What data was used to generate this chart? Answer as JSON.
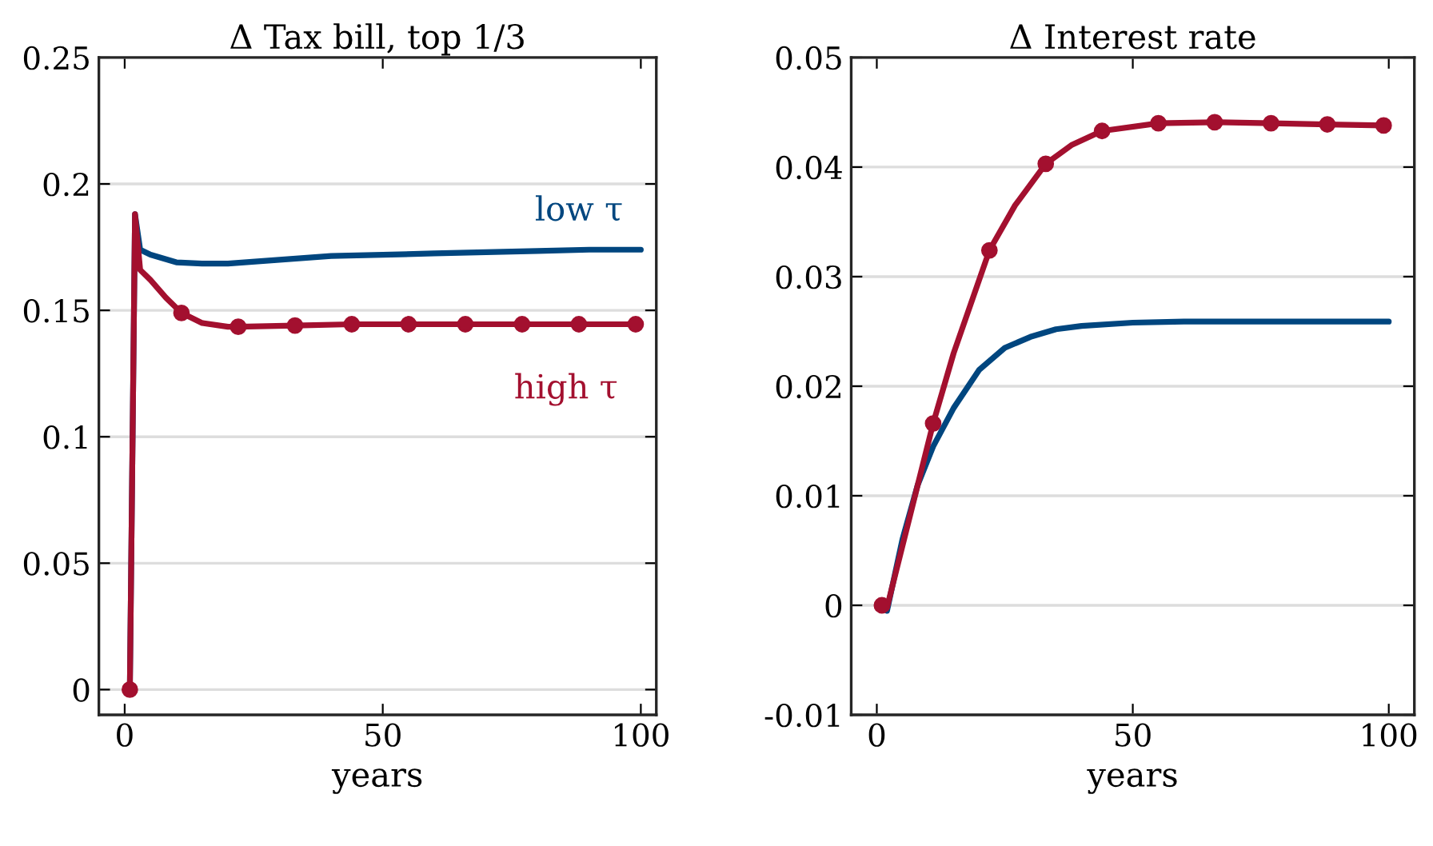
{
  "chart_data": [
    {
      "type": "line",
      "title": "Δ Tax bill, top 1/3",
      "xlabel": "years",
      "xlim": [
        -5,
        103
      ],
      "xticks": [
        0,
        50,
        100
      ],
      "ylim": [
        -0.01,
        0.25
      ],
      "yticks": [
        0,
        0.05,
        0.1,
        0.15,
        0.2,
        0.25
      ],
      "grid": "y",
      "line_style": "solid",
      "series": [
        {
          "name": "low τ",
          "color": "#00467f",
          "x": [
            1,
            2,
            3,
            5,
            10,
            15,
            20,
            30,
            40,
            50,
            60,
            70,
            80,
            90,
            100
          ],
          "values": [
            0,
            0.188,
            0.174,
            0.172,
            0.169,
            0.1685,
            0.1685,
            0.17,
            0.1715,
            0.172,
            0.1725,
            0.173,
            0.1735,
            0.174,
            0.174
          ]
        },
        {
          "name": "high τ",
          "color": "#a3102f",
          "x": [
            1,
            2,
            3,
            5,
            8,
            11,
            15,
            20,
            22,
            33,
            44,
            55,
            66,
            77,
            88,
            99
          ],
          "values": [
            0,
            0.188,
            0.166,
            0.162,
            0.155,
            0.149,
            0.145,
            0.1435,
            0.1435,
            0.144,
            0.1445,
            0.1445,
            0.1445,
            0.1445,
            0.1445,
            0.1445
          ]
        },
        {
          "type": "scatter",
          "marker": "circle",
          "color": "#a3102f",
          "x": [
            1,
            11,
            22,
            33,
            44,
            55,
            66,
            77,
            88,
            99
          ],
          "values": [
            0,
            0.149,
            0.1435,
            0.144,
            0.1445,
            0.1445,
            0.1445,
            0.1445,
            0.1445,
            0.1445
          ]
        }
      ]
    },
    {
      "type": "line",
      "title": "Δ Interest rate",
      "xlabel": "years",
      "xlim": [
        -5,
        105
      ],
      "xticks": [
        0,
        50,
        100
      ],
      "ylim": [
        -0.01,
        0.05
      ],
      "yticks": [
        {
          "value": -0.01,
          "label": "-0.01"
        },
        0,
        0.01,
        0.02,
        0.03,
        0.04,
        0.05
      ],
      "grid": "y",
      "line_style": "solid",
      "series": [
        {
          "color": "#00467f",
          "x": [
            2,
            5,
            8,
            11,
            15,
            20,
            25,
            30,
            35,
            40,
            50,
            60,
            80,
            100
          ],
          "values": [
            -0.0005,
            0.006,
            0.011,
            0.0145,
            0.018,
            0.0215,
            0.0235,
            0.0245,
            0.0252,
            0.0255,
            0.0258,
            0.0259,
            0.0259,
            0.0259
          ]
        },
        {
          "color": "#a3102f",
          "x": [
            1,
            2,
            11,
            15,
            22,
            27,
            33,
            38,
            44,
            55,
            66,
            77,
            88,
            99
          ],
          "values": [
            0,
            -0.0002,
            0.0166,
            0.023,
            0.0324,
            0.0365,
            0.0403,
            0.042,
            0.0433,
            0.044,
            0.0441,
            0.044,
            0.0439,
            0.0438
          ]
        },
        {
          "type": "scatter",
          "marker": "circle",
          "color": "#a3102f",
          "x": [
            1,
            11,
            22,
            33,
            44,
            55,
            66,
            77,
            88,
            99
          ],
          "values": [
            0,
            0.0166,
            0.0324,
            0.0403,
            0.0433,
            0.044,
            0.0441,
            0.044,
            0.0439,
            0.0438
          ]
        }
      ]
    }
  ]
}
